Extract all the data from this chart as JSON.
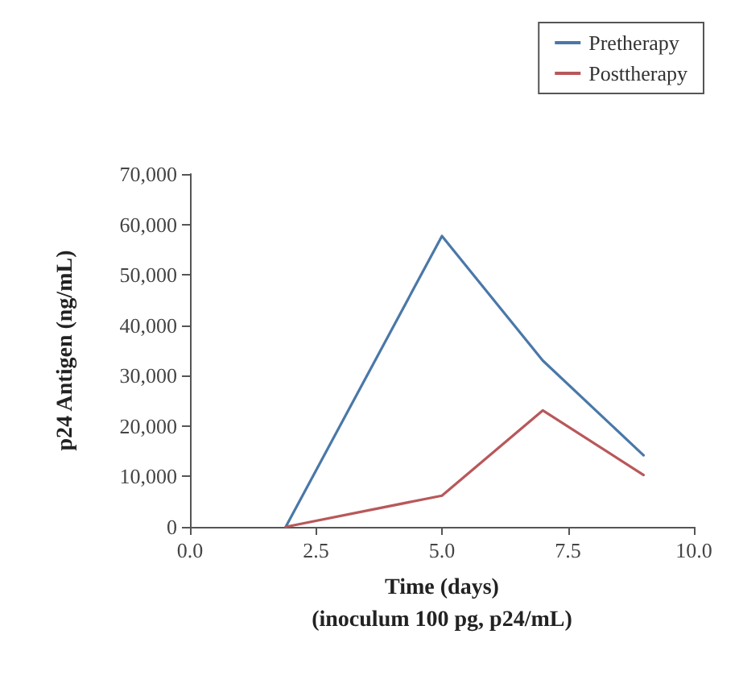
{
  "chart_data": {
    "type": "line",
    "xlabel": "Time (days)\n(inoculum 100 pg, p24/mL)",
    "ylabel": "p24 Antigen (ng/mL)",
    "series": [
      {
        "name": "Pretherapy",
        "color": "#4a78a8",
        "x": [
          1.9,
          5.0,
          7.0,
          9.0
        ],
        "values": [
          0,
          57700,
          33000,
          14200
        ]
      },
      {
        "name": "Posttherapy",
        "color": "#b8585a",
        "x": [
          1.9,
          5.0,
          7.0,
          9.0
        ],
        "values": [
          0,
          6200,
          23100,
          10300
        ]
      }
    ],
    "xlim": [
      0,
      10
    ],
    "xticks": [
      {
        "value": 0,
        "label": "0.0"
      },
      {
        "value": 2.5,
        "label": "2.5"
      },
      {
        "value": 5,
        "label": "5.0"
      },
      {
        "value": 7.5,
        "label": "7.5"
      },
      {
        "value": 10,
        "label": "10.0"
      }
    ],
    "ylim": [
      0,
      70000
    ],
    "yticks": [
      {
        "value": 0,
        "label": "0"
      },
      {
        "value": 10000,
        "label": "10,000"
      },
      {
        "value": 20000,
        "label": "20,000"
      },
      {
        "value": 30000,
        "label": "30,000"
      },
      {
        "value": 40000,
        "label": "40,000"
      },
      {
        "value": 50000,
        "label": "50,000"
      },
      {
        "value": 60000,
        "label": "60,000"
      },
      {
        "value": 70000,
        "label": "70,000"
      }
    ],
    "grid": false,
    "legend": "top right",
    "marker": "none",
    "line_style": "solid"
  }
}
